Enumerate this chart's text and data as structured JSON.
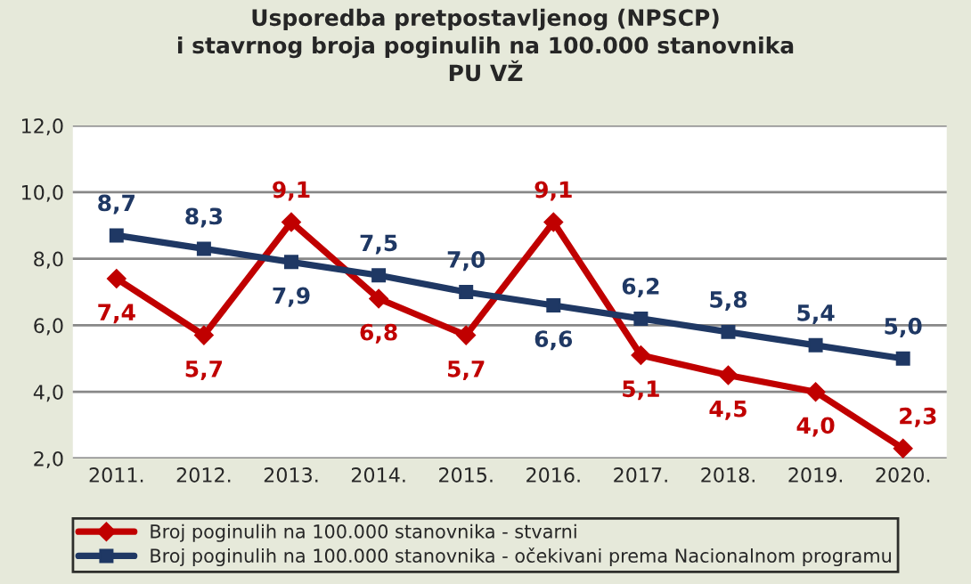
{
  "chart_data": {
    "type": "line",
    "title": "Usporedba pretpostavljenog (NPSCP)\ni stavrnog broja poginulih na 100.000 stanovnika\nPU VŽ",
    "categories": [
      "2011.",
      "2012.",
      "2013.",
      "2014.",
      "2015.",
      "2016.",
      "2017.",
      "2018.",
      "2019.",
      "2020."
    ],
    "series": [
      {
        "name": "Broj poginulih na 100.000 stanovnika - stvarni",
        "color": "#c00000",
        "marker": "diamond",
        "values": [
          7.4,
          5.7,
          9.1,
          6.8,
          5.7,
          9.1,
          5.1,
          4.5,
          4.0,
          2.3
        ],
        "value_labels": [
          "7,4",
          "5,7",
          "9,1",
          "6,8",
          "5,7",
          "9,1",
          "5,1",
          "4,5",
          "4,0",
          "2,3"
        ]
      },
      {
        "name": "Broj poginulih na 100.000 stanovnika - očekivani prema Nacionalnom programu",
        "color": "#1f3864",
        "marker": "square",
        "values": [
          8.7,
          8.3,
          7.9,
          7.5,
          7.0,
          6.6,
          6.2,
          5.8,
          5.4,
          5.0
        ],
        "value_labels": [
          "8,7",
          "8,3",
          "7,9",
          "7,5",
          "7,0",
          "6,6",
          "6,2",
          "5,8",
          "5,4",
          "5,0"
        ]
      }
    ],
    "ylim": [
      2,
      12
    ],
    "yticks": [
      {
        "value": 2,
        "label": "2,0"
      },
      {
        "value": 4,
        "label": "4,0"
      },
      {
        "value": 6,
        "label": "6,0"
      },
      {
        "value": 8,
        "label": "8,0"
      },
      {
        "value": 10,
        "label": "10,0"
      },
      {
        "value": 12,
        "label": "12,0"
      }
    ],
    "grid": "y",
    "legend": "bottom",
    "line_style": "solid"
  }
}
